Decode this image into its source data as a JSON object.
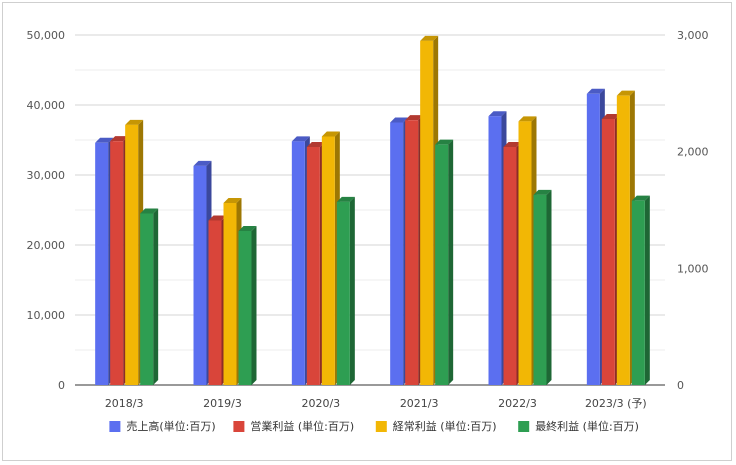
{
  "chart_data": {
    "type": "bar",
    "categories": [
      "2018/3",
      "2019/3",
      "2020/3",
      "2021/3",
      "2022/3",
      "2023/3 (予)"
    ],
    "series": [
      {
        "name": "売上高(単位:百万)",
        "axis": "left",
        "color": "#5b6ff0",
        "values": [
          34600,
          31300,
          34800,
          37500,
          38400,
          41600
        ]
      },
      {
        "name": "営業利益 (単位:百万)",
        "axis": "right",
        "color": "#d9453a",
        "values": [
          2090,
          1410,
          2040,
          2270,
          2040,
          2280
        ]
      },
      {
        "name": "経常利益 (単位:百万)",
        "axis": "right",
        "color": "#f2b705",
        "values": [
          2230,
          1560,
          2130,
          2950,
          2260,
          2480
        ]
      },
      {
        "name": "最終利益 (単位:百万)",
        "axis": "right",
        "color": "#2e9e52",
        "values": [
          1470,
          1320,
          1570,
          2060,
          1630,
          1580
        ]
      }
    ],
    "y_left": {
      "ylim": [
        0,
        50000
      ],
      "ticks": [
        "0",
        "10,000",
        "20,000",
        "30,000",
        "40,000",
        "50,000"
      ]
    },
    "y_right": {
      "ylim": [
        0,
        3000
      ],
      "ticks": [
        "0",
        "1,000",
        "2,000",
        "3,000"
      ]
    },
    "grid": true,
    "legend_position": "bottom",
    "title": "",
    "xlabel": "",
    "ylabel": ""
  }
}
